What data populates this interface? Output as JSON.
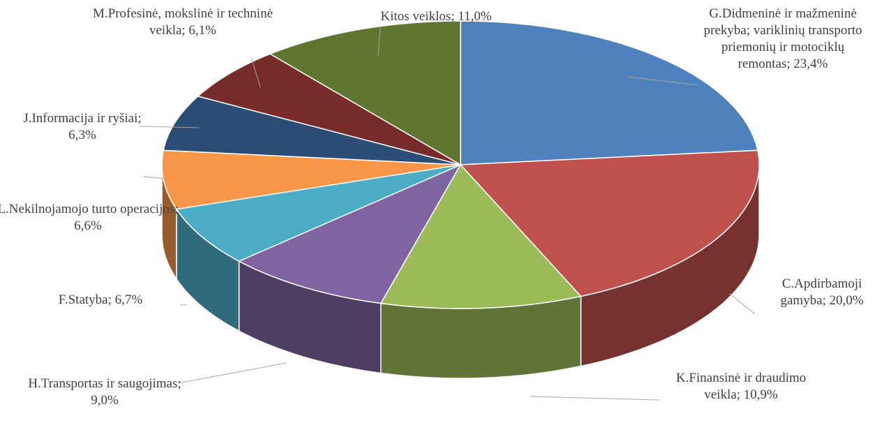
{
  "chart_data": {
    "type": "pie3d",
    "values": [
      23.4,
      20.0,
      10.9,
      9.0,
      6.7,
      6.6,
      6.3,
      6.1,
      11.0
    ],
    "value_labels": [
      "G.Didmeninė ir mažmeninė prekyba; variklinių transporto priemonių ir motociklų remontas; 23,4%",
      "C.Apdirbamoji gamyba; 20,0%",
      "K.Finansinė ir draudimo veikla; 10,9%",
      "H.Transportas ir saugojimas; 9,0%",
      "F.Statyba; 6,7%",
      "L.Nekilnojamojo turto operacijos; 6,6%",
      "J.Informacija ir ryšiai; 6,3%",
      "M.Profesinė, mokslinė ir techninė veikla; 6,1%",
      "Kitos veiklos; 11,0%"
    ],
    "colors": [
      "#4f81bd",
      "#c0504d",
      "#9bbb59",
      "#8064a2",
      "#4bacc6",
      "#f79646",
      "#2c4d75",
      "#772c2a",
      "#5f7530"
    ]
  }
}
